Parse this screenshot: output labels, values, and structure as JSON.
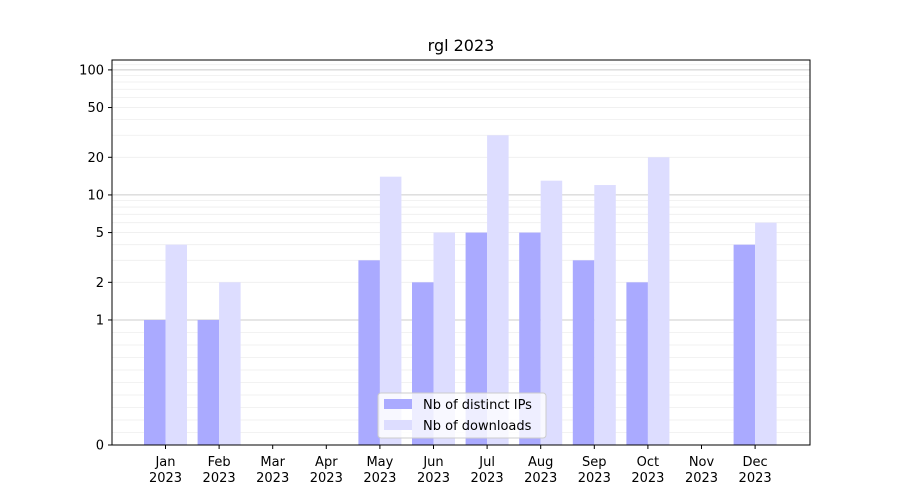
{
  "chart_data": {
    "type": "bar",
    "title": "rgl 2023",
    "xlabel": "",
    "ylabel": "",
    "y_scale": "symlog",
    "ylim": [
      0,
      120
    ],
    "y_ticks": [
      0,
      1,
      2,
      5,
      10,
      20,
      50,
      100
    ],
    "y_tick_labels": [
      "0",
      "1",
      "2",
      "5",
      "10",
      "20",
      "50",
      "100"
    ],
    "categories": [
      "Jan\n2023",
      "Feb\n2023",
      "Mar\n2023",
      "Apr\n2023",
      "May\n2023",
      "Jun\n2023",
      "Jul\n2023",
      "Aug\n2023",
      "Sep\n2023",
      "Oct\n2023",
      "Nov\n2023",
      "Dec\n2023"
    ],
    "series": [
      {
        "name": "Nb of distinct IPs",
        "color": "#aaaaff",
        "values": [
          1,
          1,
          0,
          0,
          3,
          2,
          5,
          5,
          3,
          2,
          0,
          4
        ]
      },
      {
        "name": "Nb of downloads",
        "color": "#ddddff",
        "values": [
          4,
          2,
          0,
          0,
          14,
          5,
          30,
          13,
          12,
          20,
          0,
          6
        ]
      }
    ],
    "grid": {
      "major_color": "#cccccc",
      "minor_color": "#eeeeee"
    },
    "legend_position": "bottom-center"
  }
}
